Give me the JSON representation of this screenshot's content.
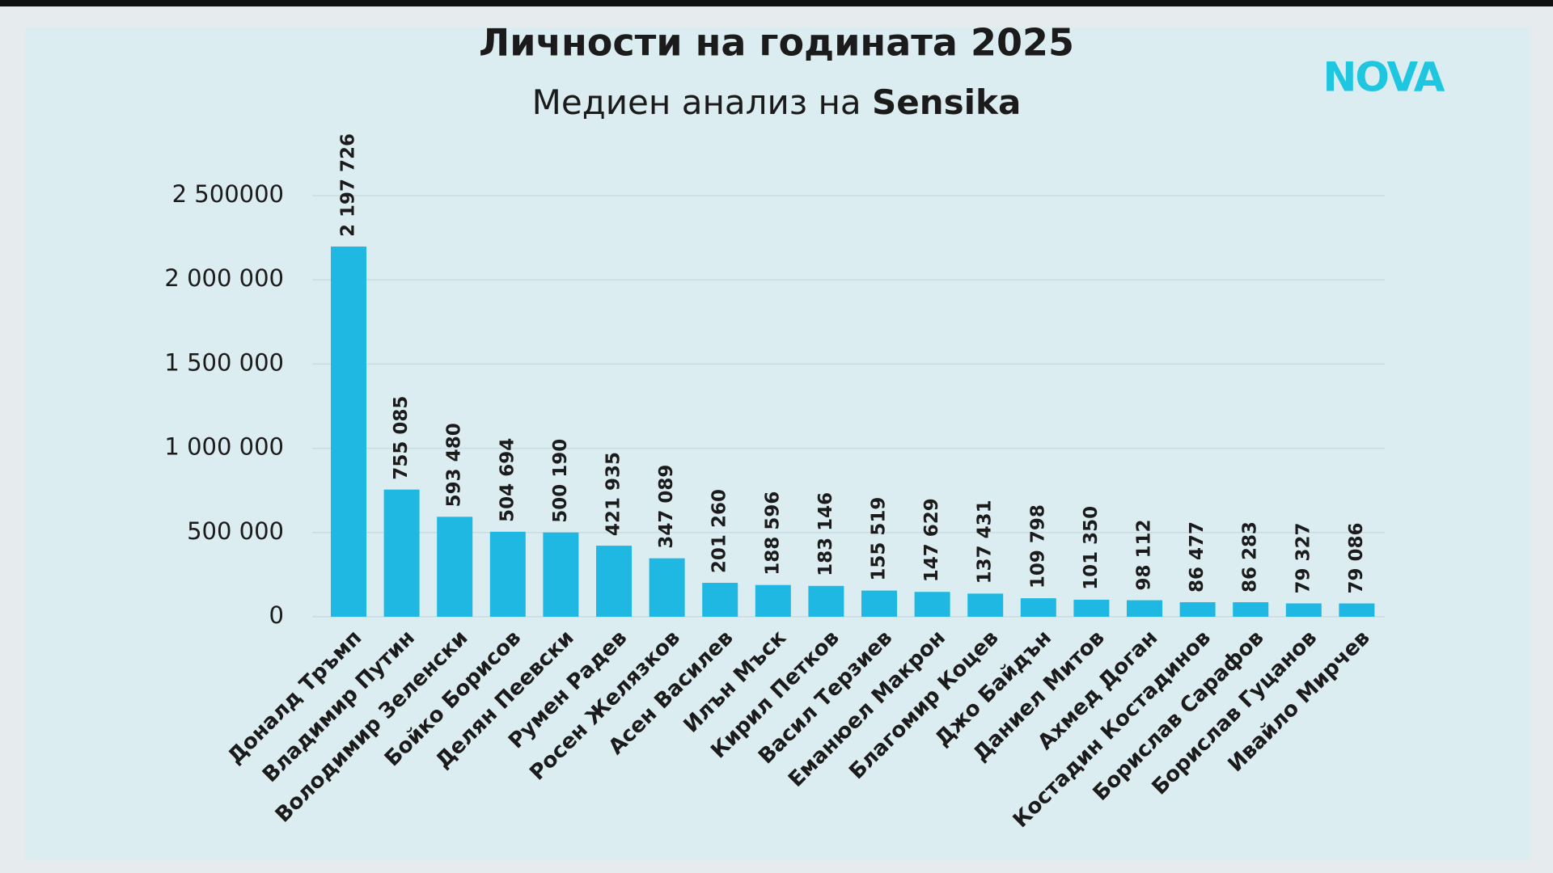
{
  "chart_data": {
    "type": "bar",
    "title": "Личности на годината 2025",
    "subtitle": "Медиен анализ на",
    "source": "Sensika",
    "logo": "NOVA",
    "categories": [
      "Доналд Тръмп",
      "Владимир Путин",
      "Володимир Зеленски",
      "Бойко Борисов",
      "Делян Пеевски",
      "Румен Радев",
      "Росен Желязков",
      "Асен Василев",
      "Илън Мъск",
      "Кирил Петков",
      "Васил Терзиев",
      "Еманюел Макрон",
      "Благомир Коцев",
      "Джо Байдън",
      "Даниел Митов",
      "Ахмед Доган",
      "Костадин Костадинов",
      "Борислав Сарафов",
      "Борислав Гуцанов",
      "Ивайло Мирчев"
    ],
    "values": [
      2197726,
      755085,
      593480,
      504694,
      500190,
      421935,
      347089,
      201260,
      188596,
      183146,
      155519,
      147629,
      137431,
      109798,
      101350,
      98112,
      86477,
      86283,
      79327,
      79086
    ],
    "value_labels": [
      "2 197 726",
      "755 085",
      "593 480",
      "504 694",
      "500 190",
      "421 935",
      "347 089",
      "201 260",
      "188 596",
      "183 146",
      "155 519",
      "147 629",
      "137 431",
      "109 798",
      "101 350",
      "98 112",
      "86 477",
      "86 283",
      "79 327",
      "79 086"
    ],
    "color": "#1fb8e2",
    "ylim": [
      0,
      2500000
    ],
    "yticks": [
      0,
      {
        "value": 500000,
        "label": "500 000"
      },
      {
        "value": 1000000,
        "label": "1 000 000"
      },
      {
        "value": 1500000,
        "label": "1 500 000"
      },
      {
        "value": 2000000,
        "label": "2 000 000"
      },
      {
        "value": 2500000,
        "label": "2 500000"
      }
    ],
    "grid": true
  }
}
